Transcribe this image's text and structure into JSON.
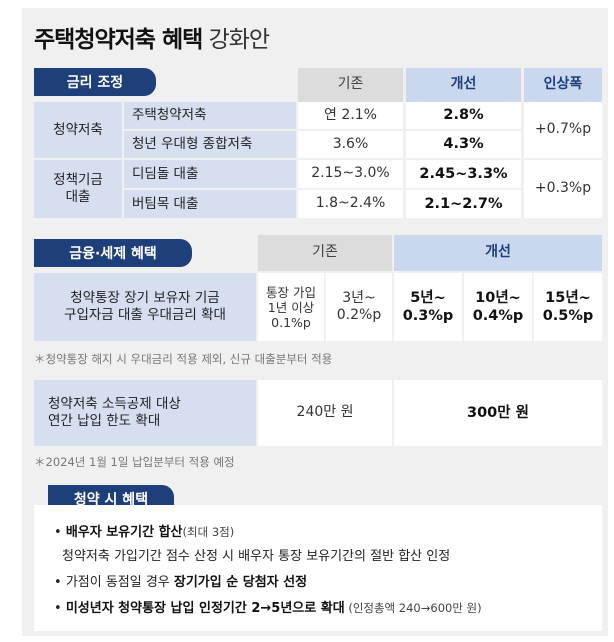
{
  "title": {
    "bold": "주택청약저축 혜택",
    "light": " 강화안"
  },
  "section1": {
    "tab": "금리 조정",
    "col_before": "기존",
    "col_after": "개선",
    "col_increase": "인상폭",
    "group1": "청약저축",
    "group2": "정책기금\n대출",
    "rows": [
      {
        "name": "주택청약저축",
        "before": "연 2.1%",
        "after": "2.8%"
      },
      {
        "name": "청년 우대형 종합저축",
        "before": "3.6%",
        "after": "4.3%"
      },
      {
        "name": "디딤돌 대출",
        "before": "2.15~3.0%",
        "after": "2.45~3.3%"
      },
      {
        "name": "버팀목 대출",
        "before": "1.8~2.4%",
        "after": "2.1~2.7%"
      }
    ],
    "increase1": "+0.7%p",
    "increase2": "+0.3%p"
  },
  "section2": {
    "tab": "금융·세제 혜택",
    "col_before": "기존",
    "col_after": "개선",
    "row_label": "청약통장 장기 보유자 기금\n구입자금 대출 우대금리 확대",
    "cells": [
      {
        "text": "통장 가입\n1년 이상\n0.1%p",
        "bold": false
      },
      {
        "text": "3년~\n0.2%p",
        "bold": false
      },
      {
        "text": "5년~\n0.3%p",
        "bold": true
      },
      {
        "text": "10년~\n0.4%p",
        "bold": true
      },
      {
        "text": "15년~\n0.5%p",
        "bold": true
      }
    ],
    "note1": "＊청약통장 해지 시 우대금리 적용 제외, 신규 대출분부터 적용",
    "row2_label": "청약저축 소득공제 대상\n연간 납입 한도 확대",
    "row2_before": "240만 원",
    "row2_after": "300만 원",
    "note2": "＊2024년 1월 1일 납입분부터 적용 예정"
  },
  "section3": {
    "tab": "청약 시 혜택",
    "b1_bold": "배우자 보유기간 합산",
    "b1_small": "(최대 3점)",
    "b1_sub": "청약저축 가입기간 점수 산정 시 배우자 통장 보유기간의 절반 합산 인정",
    "b2_pre": "가점이 동점일 경우 ",
    "b2_bold": "장기가입 순 당첨자 선정",
    "b3_bold": "미성년자 청약통장 납입 인정기간 2→5년으로 확대",
    "b3_small": " (인정총액 240→600만 원)"
  },
  "colors": {
    "navy": "#1f3f7a",
    "label_blue": "#d5dff0",
    "header_blue": "#c9d8ef",
    "header_gray": "#dcdcdc"
  }
}
